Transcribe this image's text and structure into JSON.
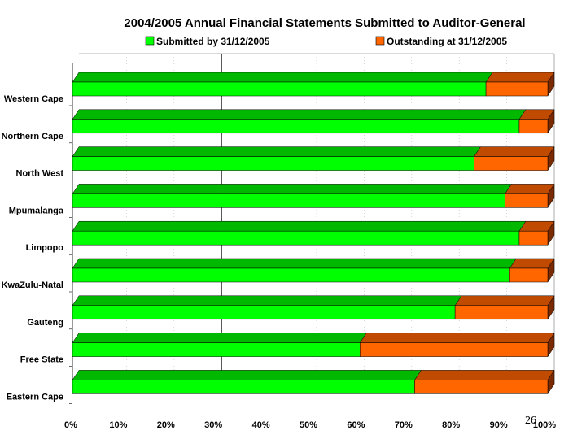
{
  "page_number": "26",
  "colors": {
    "submitted_front": "#00ff00",
    "submitted_top": "#00b800",
    "outstanding_front": "#ff6600",
    "outstanding_top": "#c04a00",
    "end_cap": "#7a2a00"
  },
  "chart_data": {
    "type": "bar",
    "orientation": "horizontal",
    "stacked": "percent",
    "title": "2004/2005 Annual Financial Statements Submitted to Auditor-General",
    "categories": [
      "Western Cape",
      "Northern Cape",
      "North West",
      "Mpumalanga",
      "Limpopo",
      "KwaZulu-Natal",
      "Gauteng",
      "Free State",
      "Eastern Cape"
    ],
    "series": [
      {
        "name": "Submitted by 31/12/2005",
        "values": [
          87,
          94,
          84.5,
          91,
          94,
          92,
          80.5,
          60.5,
          72
        ]
      },
      {
        "name": "Outstanding at 31/12/2005",
        "values": [
          13,
          6,
          15.5,
          9,
          6,
          8,
          19.5,
          39.5,
          28
        ]
      }
    ],
    "xticks": [
      "0%",
      "10%",
      "20%",
      "30%",
      "40%",
      "50%",
      "60%",
      "70%",
      "80%",
      "90%",
      "100%"
    ],
    "xlim": [
      0,
      100
    ],
    "legend_position": "top",
    "grid": true
  }
}
